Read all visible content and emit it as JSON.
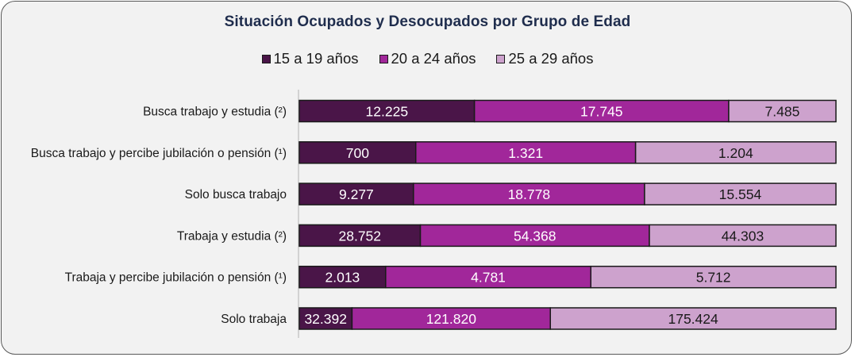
{
  "chart_data": {
    "type": "bar",
    "orientation": "horizontal",
    "stacked": "percent",
    "title": "Situación Ocupados y Desocupados por Grupo de Edad",
    "legend_position": "top",
    "grid": false,
    "categories": [
      "Busca trabajo y estudia (²)",
      "Busca trabajo y percibe jubilación o pensión (¹)",
      "Solo busca trabajo",
      "Trabaja y estudia (²)",
      "Trabaja y percibe jubilación o pensión (¹)",
      "Solo trabaja"
    ],
    "series": [
      {
        "name": "15 a 19 años",
        "color": "#4a1548",
        "label_color": "#ffffff",
        "values": [
          12225,
          700,
          9277,
          28752,
          2013,
          32392
        ],
        "labels": [
          "12.225",
          "700",
          "9.277",
          "28.752",
          "2.013",
          "32.392"
        ]
      },
      {
        "name": "20 a 24 años",
        "color": "#a1279a",
        "label_color": "#ffffff",
        "values": [
          17745,
          1321,
          18778,
          54368,
          4781,
          121820
        ],
        "labels": [
          "17.745",
          "1.321",
          "18.778",
          "54.368",
          "4.781",
          "121.820"
        ]
      },
      {
        "name": "25 a 29 años",
        "color": "#cda2cd",
        "label_color": "#1a1a1a",
        "values": [
          7485,
          1204,
          15554,
          44303,
          5712,
          175424
        ],
        "labels": [
          "7.485",
          "1.204",
          "15.554",
          "44.303",
          "5.712",
          "175.424"
        ]
      }
    ]
  }
}
